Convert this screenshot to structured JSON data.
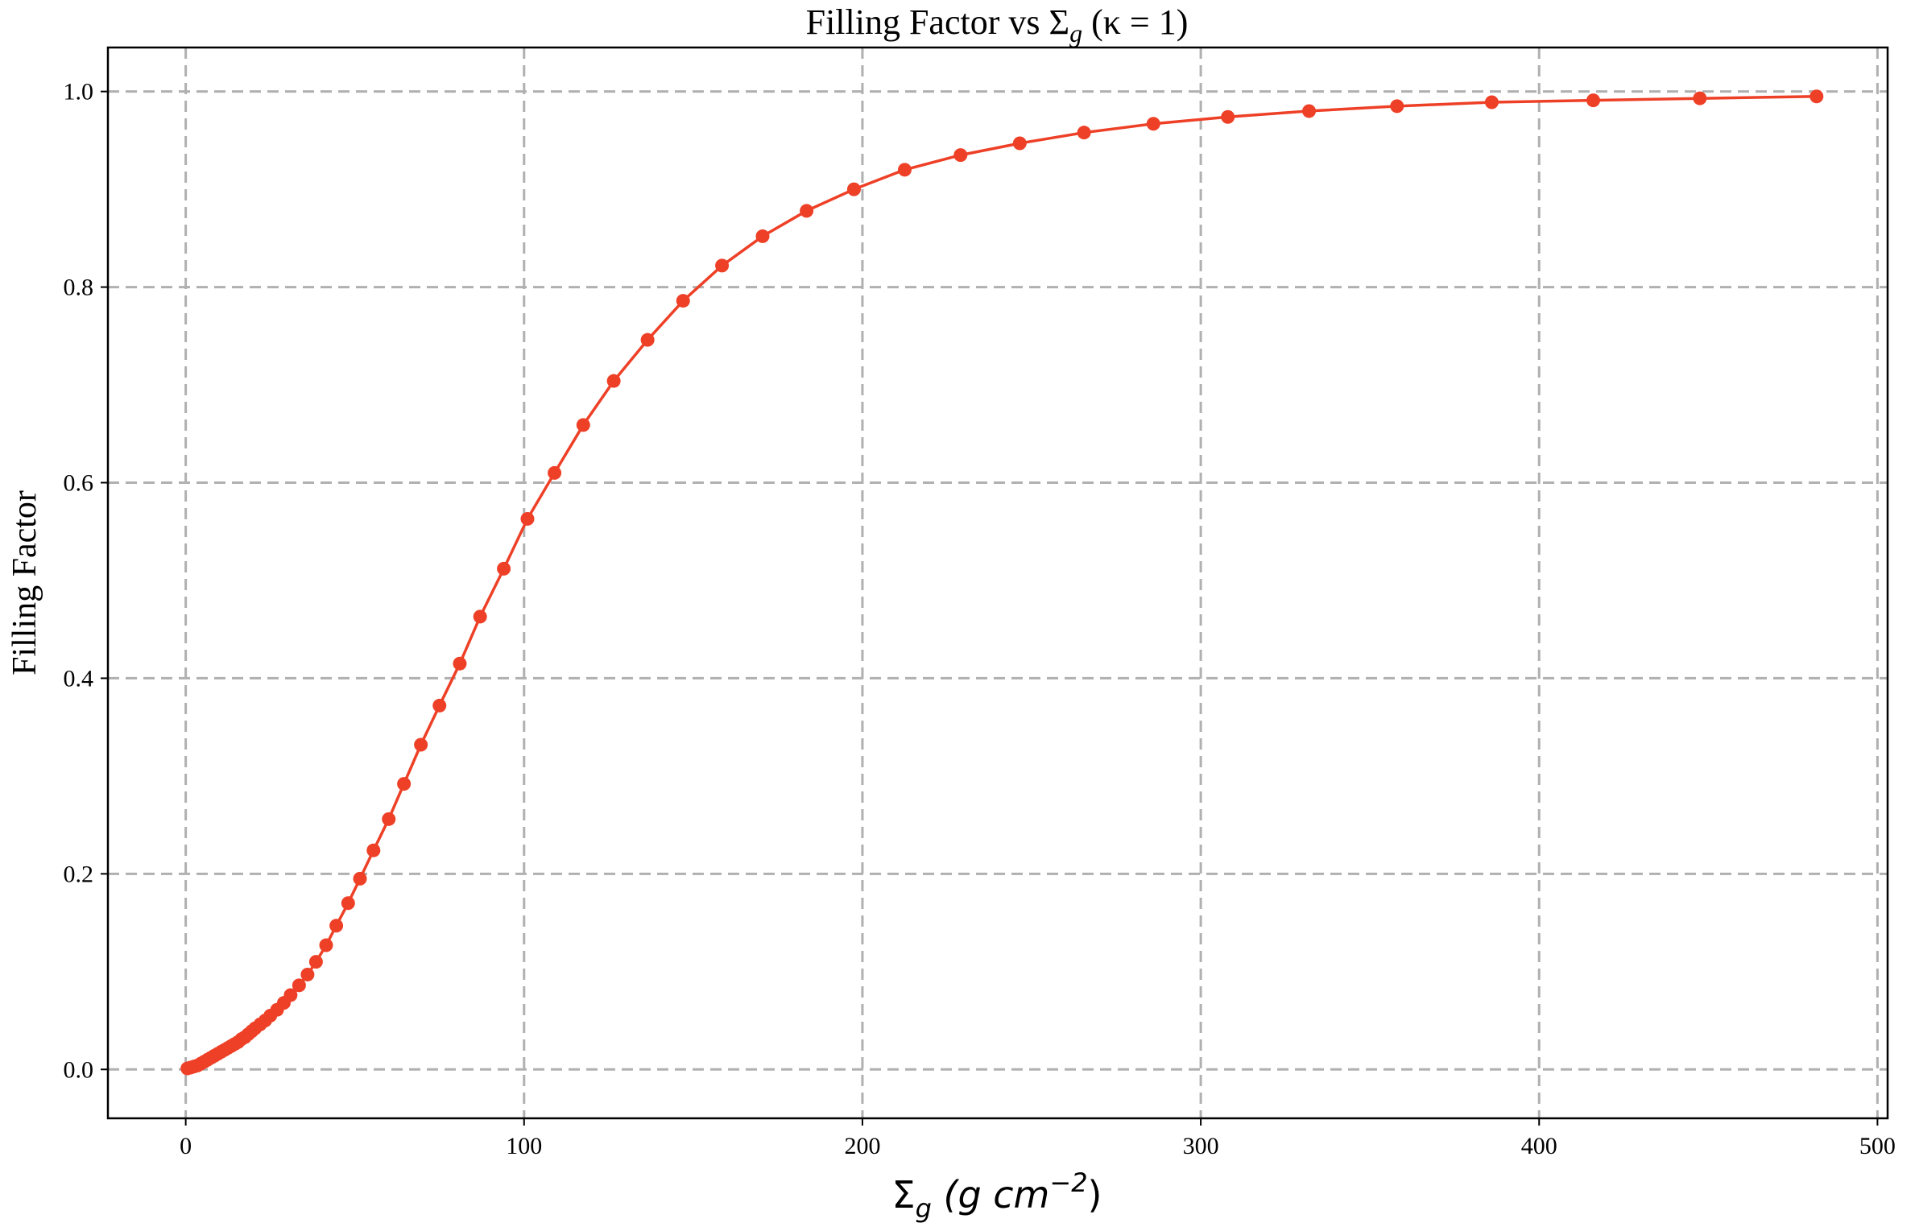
{
  "chart_data": {
    "type": "line",
    "title_main": "Filling Factor vs Σ",
    "title_sub": "g",
    "title_paren": "(κ = 1)",
    "xlabel_main": "Σ",
    "xlabel_sub": "g",
    "xlabel_rest": "(g cm",
    "xlabel_sup": "−2",
    "xlabel_close": ")",
    "ylabel": "Filling Factor",
    "xlim": [
      -23,
      503
    ],
    "ylim": [
      -0.05,
      1.045
    ],
    "xticks": [
      0,
      100,
      200,
      300,
      400,
      500
    ],
    "yticks": [
      0.0,
      0.2,
      0.4,
      0.6,
      0.8,
      1.0
    ],
    "xtick_labels": [
      "0",
      "100",
      "200",
      "300",
      "400",
      "500"
    ],
    "ytick_labels": [
      "0.0",
      "0.2",
      "0.4",
      "0.6",
      "0.8",
      "1.0"
    ],
    "grid": true,
    "color": "#ee4027",
    "series": [
      {
        "x": [
          0.5,
          1.5,
          2.5,
          3.5,
          4.5,
          5.5,
          6.5,
          7.5,
          8.5,
          9.5,
          10.5,
          11.5,
          12.5,
          13.5,
          14.5,
          15.5,
          16.5,
          17.5,
          18.5,
          19.5,
          20.5,
          22,
          23.5,
          25,
          27,
          29,
          31,
          33.5,
          36,
          38.5,
          41.5,
          44.5,
          48,
          51.5,
          55.5,
          60,
          64.5,
          69.5,
          75,
          81,
          87,
          94,
          101,
          109,
          117.5,
          126.5,
          136.5,
          147,
          158.5,
          170.5,
          183.5,
          197.5,
          212.5,
          229,
          246.5,
          265.5,
          286,
          308,
          332,
          358,
          386,
          416,
          447.5,
          482
        ],
        "y": [
          0.001,
          0.002,
          0.003,
          0.004,
          0.006,
          0.008,
          0.01,
          0.012,
          0.014,
          0.016,
          0.018,
          0.02,
          0.022,
          0.024,
          0.026,
          0.028,
          0.031,
          0.033,
          0.036,
          0.039,
          0.042,
          0.046,
          0.05,
          0.055,
          0.061,
          0.068,
          0.076,
          0.086,
          0.097,
          0.11,
          0.127,
          0.147,
          0.17,
          0.195,
          0.224,
          0.256,
          0.292,
          0.332,
          0.372,
          0.415,
          0.463,
          0.512,
          0.563,
          0.61,
          0.659,
          0.704,
          0.746,
          0.786,
          0.822,
          0.852,
          0.878,
          0.9,
          0.92,
          0.935,
          0.947,
          0.958,
          0.967,
          0.974,
          0.98,
          0.985,
          0.989,
          0.991,
          0.993,
          0.995
        ]
      }
    ]
  }
}
